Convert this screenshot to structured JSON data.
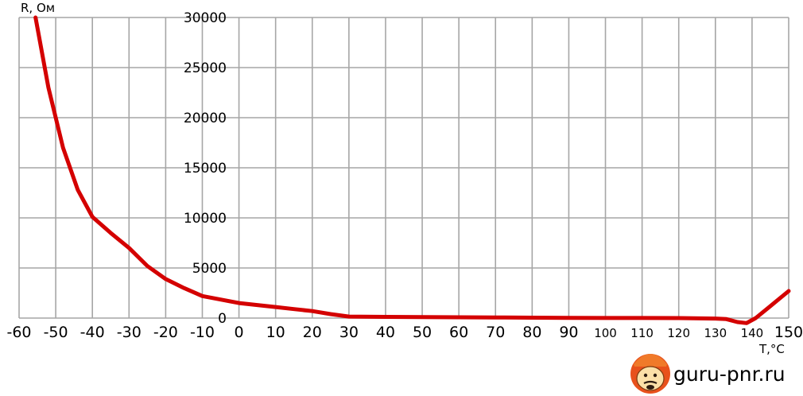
{
  "chart_data": {
    "type": "line",
    "xlabel": "T,°C",
    "ylabel": "R, Ом",
    "xlim": [
      -60,
      150
    ],
    "ylim": [
      0,
      30000
    ],
    "x_ticks": [
      -60,
      -50,
      -40,
      -30,
      -20,
      -10,
      0,
      10,
      20,
      30,
      40,
      50,
      60,
      70,
      80,
      90,
      100,
      110,
      120,
      130,
      140,
      150
    ],
    "y_ticks": [
      0,
      5000,
      10000,
      15000,
      20000,
      25000,
      30000
    ],
    "grid": true,
    "series": [
      {
        "color": "#d40000",
        "x": [
          -55.5,
          -52,
          -48,
          -44,
          -40,
          -35,
          -30,
          -25,
          -20,
          -15,
          -10,
          -5,
          0,
          5,
          10,
          15,
          20,
          25,
          30,
          40,
          50,
          60,
          70,
          80,
          90,
          100,
          110,
          120,
          130,
          133,
          136,
          138.5,
          141,
          145,
          150
        ],
        "y": [
          30000,
          23000,
          17000,
          12800,
          10100,
          8500,
          7000,
          5200,
          3900,
          3000,
          2200,
          1850,
          1500,
          1300,
          1100,
          900,
          700,
          400,
          150,
          120,
          100,
          80,
          60,
          40,
          20,
          10,
          5,
          0,
          -50,
          -100,
          -400,
          -500,
          0,
          1200,
          2700
        ]
      }
    ]
  },
  "watermark": {
    "text": "guru-pnr.ru"
  }
}
